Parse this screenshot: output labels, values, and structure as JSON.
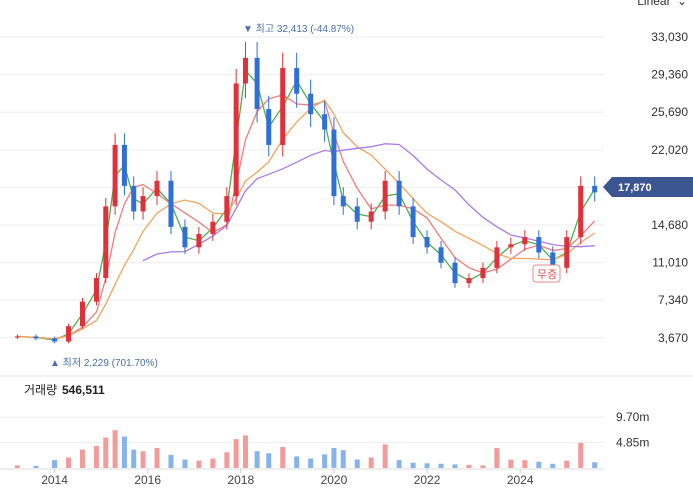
{
  "scale_toggle": {
    "label": "Linear"
  },
  "annotations": {
    "high": "▼ 최고 32,413 (-44.87%)",
    "low": "▲ 최저 2,229 (701.70%)",
    "event": "무증"
  },
  "current_price": {
    "label": "17,870",
    "value": 17870
  },
  "volume": {
    "title": "거래량",
    "value": "546,511"
  },
  "colors": {
    "up": "#e0303a",
    "down": "#2f6fd6",
    "ma5": "#4caf50",
    "ma20": "#f07d7d",
    "ma60": "#f3a35b",
    "ma120": "#a97be6",
    "vol_up": "#f29b9b",
    "vol_down": "#86b3ea",
    "badge": "#3b5590"
  },
  "chart_data": {
    "type": "candlestick",
    "y_ticks": [
      "33,030",
      "29,360",
      "25,690",
      "22,020",
      "18,350",
      "14,680",
      "11,010",
      "7,340",
      "3,670"
    ],
    "ylim": [
      1500,
      34500
    ],
    "x_ticks": [
      "2014",
      "2016",
      "2018",
      "2020",
      "2022",
      "2024"
    ],
    "xlim": [
      2013.0,
      2025.8
    ],
    "series": [
      {
        "name": "price",
        "x": [
          2013.2,
          2013.6,
          2014.0,
          2014.3,
          2014.6,
          2014.9,
          2015.1,
          2015.3,
          2015.5,
          2015.7,
          2015.9,
          2016.2,
          2016.5,
          2016.8,
          2017.1,
          2017.4,
          2017.7,
          2017.9,
          2018.1,
          2018.35,
          2018.6,
          2018.9,
          2019.2,
          2019.5,
          2019.8,
          2020.0,
          2020.2,
          2020.5,
          2020.8,
          2021.1,
          2021.4,
          2021.7,
          2022.0,
          2022.3,
          2022.6,
          2022.9,
          2023.2,
          2023.5,
          2023.8,
          2024.1,
          2024.4,
          2024.7,
          2025.0,
          2025.3,
          2025.6
        ],
        "y": [
          3800,
          3600,
          3300,
          4800,
          7200,
          9500,
          16500,
          22500,
          18500,
          16000,
          17500,
          19000,
          14500,
          12500,
          13800,
          15000,
          17500,
          28500,
          31000,
          26000,
          22500,
          30000,
          27500,
          25500,
          24000,
          17500,
          16500,
          15000,
          16000,
          19000,
          16500,
          13500,
          12500,
          11000,
          9000,
          9500,
          10500,
          12500,
          12800,
          13500,
          12000,
          10500,
          13500,
          18500,
          17870
        ]
      },
      {
        "name": "volume",
        "values": [
          0.5,
          0.4,
          1.5,
          2.0,
          3.5,
          4.2,
          5.8,
          7.2,
          6.0,
          3.5,
          3.2,
          3.8,
          2.5,
          1.6,
          1.4,
          1.8,
          3.0,
          5.5,
          6.2,
          3.2,
          2.8,
          4.0,
          2.2,
          1.8,
          2.6,
          3.8,
          3.4,
          1.6,
          2.0,
          4.5,
          1.5,
          1.0,
          0.9,
          0.8,
          0.7,
          0.6,
          0.5,
          3.8,
          1.6,
          1.5,
          1.2,
          0.8,
          1.4,
          4.8,
          1.1
        ]
      }
    ],
    "volume_ticks": [
      "9.70m",
      "4.85m"
    ],
    "volume_ylim": [
      0,
      12
    ],
    "legend": "none",
    "grid": true
  }
}
